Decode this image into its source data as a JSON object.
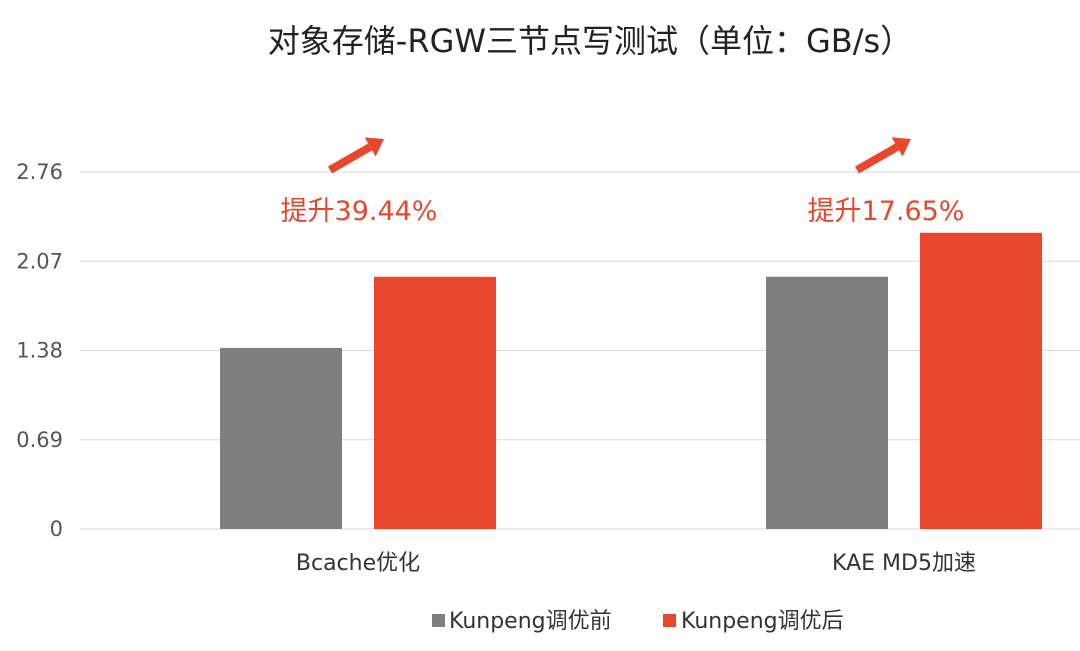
{
  "chart_data": {
    "type": "bar",
    "title": "对象存储-RGW三节点写测试（单位：GB/s）",
    "categories": [
      "Bcache优化",
      "KAE MD5加速"
    ],
    "series": [
      {
        "name": "Kunpeng调优前",
        "values": [
          1.4,
          1.95
        ],
        "color": "#7f7f7f"
      },
      {
        "name": "Kunpeng调优后",
        "values": [
          1.95,
          2.29
        ],
        "color": "#e8472e"
      }
    ],
    "yticks": [
      "0",
      "0.69",
      "1.38",
      "2.07",
      "2.76"
    ],
    "ylim": [
      0,
      2.76
    ],
    "grid": true,
    "legend_position": "bottom",
    "annotations": [
      {
        "category": "Bcache优化",
        "text": "提升39.44%",
        "icon": "up-right-arrow-icon"
      },
      {
        "category": "KAE MD5加速",
        "text": "提升17.65%",
        "icon": "up-right-arrow-icon"
      }
    ],
    "annotation_color": "#e8472e",
    "grid_color": "#d9d9d9"
  }
}
